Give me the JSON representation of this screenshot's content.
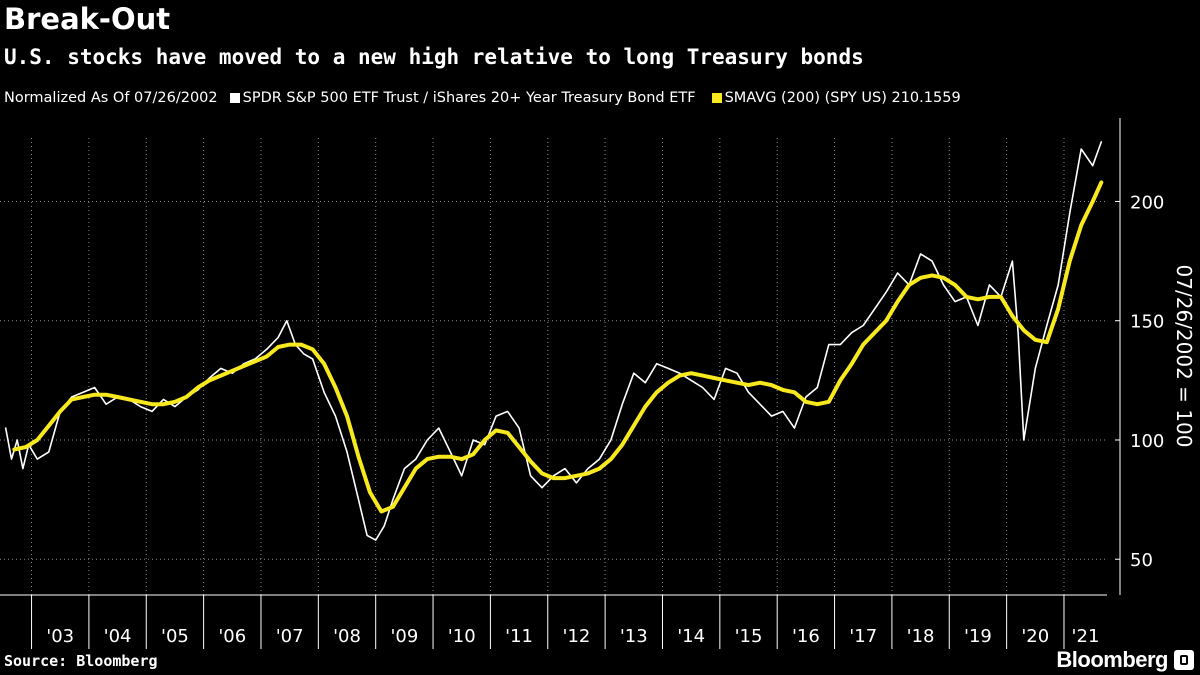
{
  "header": {
    "title": "Break-Out",
    "subtitle": "U.S. stocks have moved to a new high relative to long Treasury bonds"
  },
  "legend": {
    "normalized": "Normalized As Of 07/26/2002",
    "series1": "SPDR S&P 500 ETF Trust / iShares 20+ Year Treasury Bond ETF",
    "series2": "SMAVG (200) (SPY US) 210.1559"
  },
  "footer": {
    "source": "Source: Bloomberg",
    "brand": "Bloomberg"
  },
  "colors": {
    "background": "#000000",
    "ratio_line": "#ffffff",
    "sma_line": "#f7e91e",
    "grid": "#8a8a8a"
  },
  "chart_data": {
    "type": "line",
    "title": "Break-Out",
    "subtitle": "U.S. stocks have moved to a new high relative to long Treasury bonds",
    "ylabel": "07/26/2002 = 100",
    "xlabel": "",
    "x_range": [
      2002.45,
      2021.75
    ],
    "ylim": [
      35,
      235
    ],
    "yticks": [
      50,
      100,
      150,
      200
    ],
    "ytick_labels": [
      "50",
      "100",
      "150",
      "200"
    ],
    "xtick_labels": [
      "'03",
      "'04",
      "'05",
      "'06",
      "'07",
      "'08",
      "'09",
      "'10",
      "'11",
      "'12",
      "'13",
      "'14",
      "'15",
      "'16",
      "'17",
      "'18",
      "'19",
      "'20",
      "'21"
    ],
    "xtick_years": [
      2003,
      2004,
      2005,
      2006,
      2007,
      2008,
      2009,
      2010,
      2011,
      2012,
      2013,
      2014,
      2015,
      2016,
      2017,
      2018,
      2019,
      2020,
      2021
    ],
    "grid": true,
    "series": [
      {
        "name": "SPDR S&P 500 ETF Trust / iShares 20+ Year Treasury Bond ETF",
        "color": "#ffffff",
        "x": [
          2002.55,
          2002.65,
          2002.75,
          2002.85,
          2002.95,
          2003.1,
          2003.3,
          2003.5,
          2003.7,
          2003.9,
          2004.1,
          2004.3,
          2004.5,
          2004.7,
          2004.9,
          2005.1,
          2005.3,
          2005.5,
          2005.7,
          2005.9,
          2006.1,
          2006.3,
          2006.5,
          2006.7,
          2006.9,
          2007.1,
          2007.3,
          2007.45,
          2007.6,
          2007.75,
          2007.9,
          2008.1,
          2008.3,
          2008.5,
          2008.7,
          2008.85,
          2009.0,
          2009.15,
          2009.3,
          2009.5,
          2009.7,
          2009.9,
          2010.1,
          2010.3,
          2010.5,
          2010.7,
          2010.9,
          2011.1,
          2011.3,
          2011.5,
          2011.7,
          2011.9,
          2012.1,
          2012.3,
          2012.5,
          2012.7,
          2012.9,
          2013.1,
          2013.3,
          2013.5,
          2013.7,
          2013.9,
          2014.1,
          2014.3,
          2014.5,
          2014.7,
          2014.9,
          2015.1,
          2015.3,
          2015.5,
          2015.7,
          2015.9,
          2016.1,
          2016.3,
          2016.5,
          2016.7,
          2016.9,
          2017.1,
          2017.3,
          2017.5,
          2017.7,
          2017.9,
          2018.1,
          2018.3,
          2018.5,
          2018.7,
          2018.9,
          2019.1,
          2019.3,
          2019.5,
          2019.7,
          2019.9,
          2020.1,
          2020.2,
          2020.3,
          2020.5,
          2020.7,
          2020.9,
          2021.1,
          2021.3,
          2021.5,
          2021.65
        ],
        "values": [
          105,
          92,
          100,
          88,
          98,
          92,
          95,
          112,
          118,
          120,
          122,
          115,
          118,
          117,
          114,
          112,
          117,
          114,
          118,
          121,
          126,
          130,
          128,
          132,
          134,
          138,
          143,
          150,
          140,
          136,
          134,
          120,
          110,
          95,
          75,
          60,
          58,
          64,
          75,
          88,
          92,
          100,
          105,
          95,
          85,
          100,
          98,
          110,
          112,
          105,
          85,
          80,
          85,
          88,
          82,
          88,
          92,
          100,
          115,
          128,
          124,
          132,
          130,
          128,
          125,
          122,
          117,
          130,
          128,
          120,
          115,
          110,
          112,
          105,
          118,
          122,
          140,
          140,
          145,
          148,
          155,
          162,
          170,
          165,
          178,
          175,
          165,
          158,
          160,
          148,
          165,
          160,
          175,
          145,
          100,
          130,
          148,
          165,
          195,
          222,
          215,
          225
        ]
      },
      {
        "name": "SMAVG (200) (SPY US) 210.1559",
        "color": "#f7e91e",
        "x": [
          2002.7,
          2002.9,
          2003.1,
          2003.3,
          2003.5,
          2003.7,
          2003.9,
          2004.1,
          2004.3,
          2004.5,
          2004.7,
          2004.9,
          2005.1,
          2005.3,
          2005.5,
          2005.7,
          2005.9,
          2006.1,
          2006.3,
          2006.5,
          2006.7,
          2006.9,
          2007.1,
          2007.3,
          2007.5,
          2007.7,
          2007.9,
          2008.1,
          2008.3,
          2008.5,
          2008.7,
          2008.9,
          2009.1,
          2009.3,
          2009.5,
          2009.7,
          2009.9,
          2010.1,
          2010.3,
          2010.5,
          2010.7,
          2010.9,
          2011.1,
          2011.3,
          2011.5,
          2011.7,
          2011.9,
          2012.1,
          2012.3,
          2012.5,
          2012.7,
          2012.9,
          2013.1,
          2013.3,
          2013.5,
          2013.7,
          2013.9,
          2014.1,
          2014.3,
          2014.5,
          2014.7,
          2014.9,
          2015.1,
          2015.3,
          2015.5,
          2015.7,
          2015.9,
          2016.1,
          2016.3,
          2016.5,
          2016.7,
          2016.9,
          2017.1,
          2017.3,
          2017.5,
          2017.7,
          2017.9,
          2018.1,
          2018.3,
          2018.5,
          2018.7,
          2018.9,
          2019.1,
          2019.3,
          2019.5,
          2019.7,
          2019.9,
          2020.1,
          2020.3,
          2020.5,
          2020.7,
          2020.9,
          2021.1,
          2021.3,
          2021.5,
          2021.65
        ],
        "values": [
          96,
          97,
          100,
          106,
          112,
          117,
          118,
          119,
          119,
          118,
          117,
          116,
          115,
          115,
          116,
          118,
          122,
          125,
          127,
          129,
          131,
          133,
          135,
          139,
          140,
          140,
          138,
          132,
          122,
          110,
          93,
          78,
          70,
          72,
          80,
          88,
          92,
          93,
          93,
          92,
          94,
          100,
          104,
          103,
          97,
          91,
          86,
          84,
          84,
          85,
          86,
          88,
          92,
          98,
          106,
          114,
          120,
          124,
          127,
          128,
          127,
          126,
          125,
          124,
          123,
          124,
          123,
          121,
          120,
          116,
          115,
          116,
          125,
          132,
          140,
          145,
          150,
          158,
          165,
          168,
          169,
          168,
          165,
          160,
          159,
          160,
          160,
          152,
          146,
          142,
          141,
          155,
          175,
          190,
          200,
          208
        ]
      }
    ]
  }
}
